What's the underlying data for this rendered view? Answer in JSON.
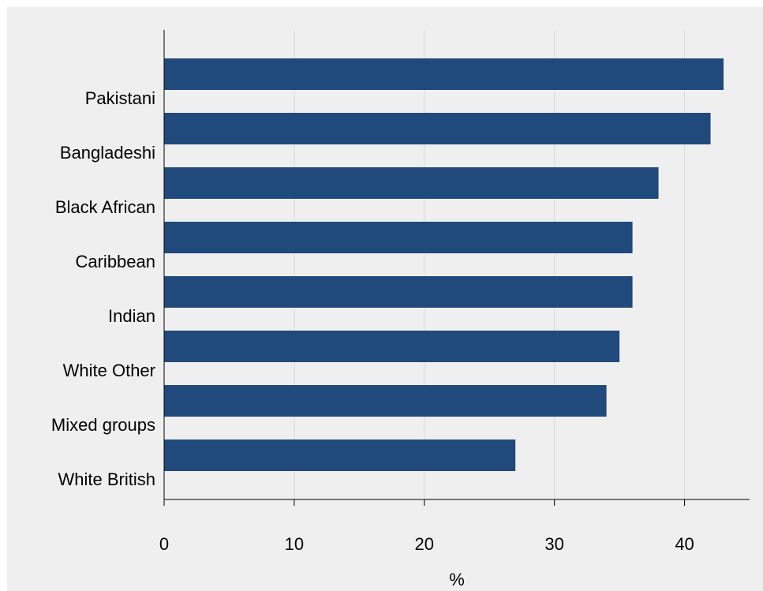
{
  "chart_data": {
    "type": "bar",
    "orientation": "horizontal",
    "categories": [
      "Pakistani",
      "Bangladeshi",
      "Black African",
      "Caribbean",
      "Indian",
      "White Other",
      "Mixed groups",
      "White British"
    ],
    "values": [
      43,
      42,
      38,
      36,
      36,
      35,
      34,
      27
    ],
    "xlabel": "%",
    "ylabel": "",
    "xlim": [
      0,
      45
    ],
    "xticks": [
      0,
      10,
      20,
      30,
      40
    ],
    "grid": "vertical",
    "legend": "none",
    "bar_color": "#214a7c"
  }
}
